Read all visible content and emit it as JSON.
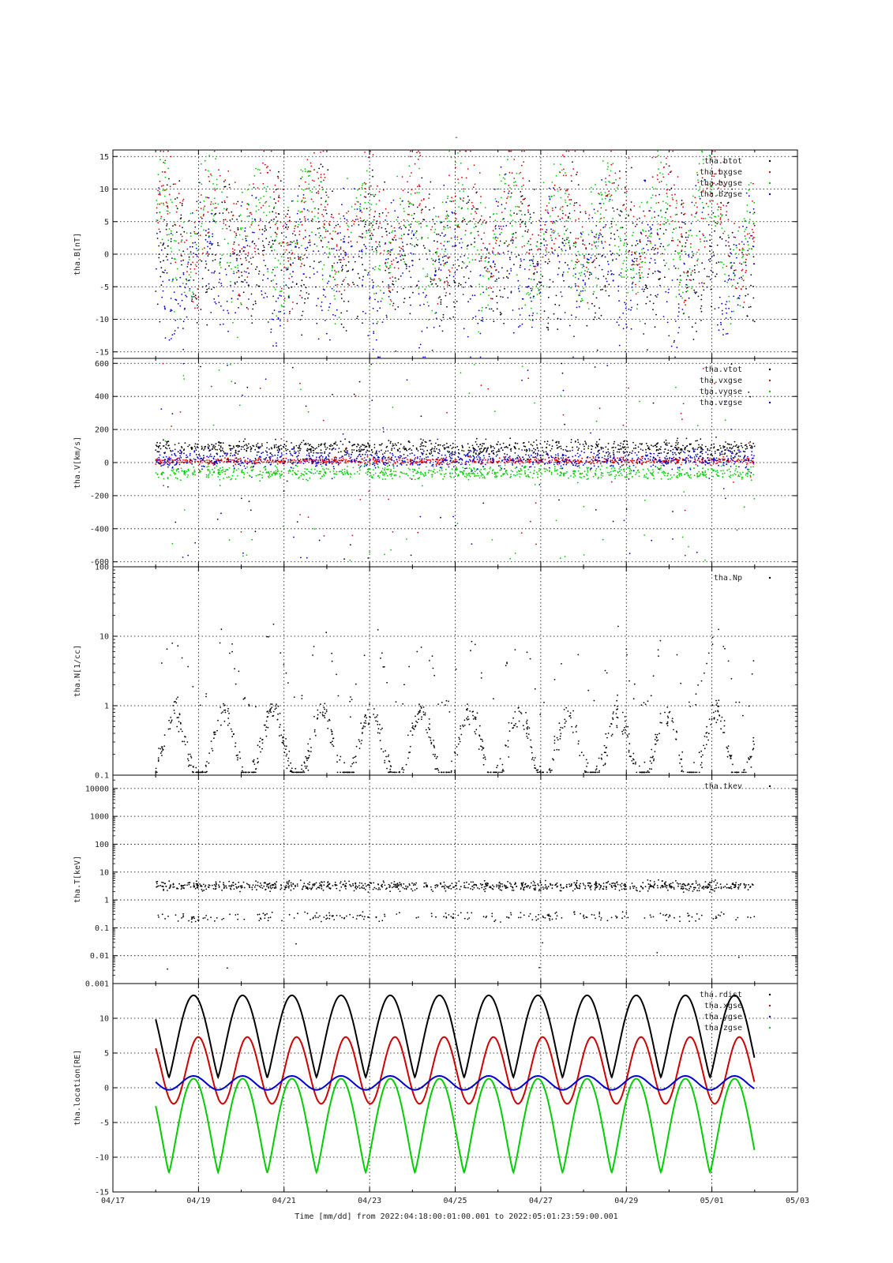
{
  "figure": {
    "title": "-",
    "time_axis": {
      "start": "2022-04-17",
      "end": "2022-05-03",
      "tick_labels": [
        {
          "date": "2022-04-17",
          "label": "04/17"
        },
        {
          "date": "2022-04-19",
          "label": "04/19"
        },
        {
          "date": "2022-04-21",
          "label": "04/21"
        },
        {
          "date": "2022-04-23",
          "label": "04/23"
        },
        {
          "date": "2022-04-25",
          "label": "04/25"
        },
        {
          "date": "2022-04-27",
          "label": "04/27"
        },
        {
          "date": "2022-04-29",
          "label": "04/29"
        },
        {
          "date": "2022-05-01",
          "label": "05/01"
        },
        {
          "date": "2022-05-03",
          "label": "05/03"
        }
      ],
      "label": "Time [mm/dd]  from 2022:04:18:00:01:00.001  to  2022:05:01:23:59:00.001"
    }
  },
  "chart_data": [
    {
      "type": "scatter",
      "ylabel": "tha.B[nT]",
      "scale": "linear",
      "ylim": [
        -16,
        16
      ],
      "yticks": [
        -15,
        -10,
        -5,
        0,
        5,
        10,
        15
      ],
      "legend_position": "top-right",
      "data_start": "2022-04-18",
      "data_end": "2022-05-01 23:59",
      "series": [
        {
          "name": "tha.btot",
          "color": "#000000"
        },
        {
          "name": "tha.bxgse",
          "color": "#dd0000"
        },
        {
          "name": "tha.bygse",
          "color": "#00cc00"
        },
        {
          "name": "tha.bzgse",
          "color": "#0000cc"
        }
      ]
    },
    {
      "type": "scatter",
      "ylabel": "tha.V[km/s]",
      "scale": "linear",
      "ylim": [
        -630,
        630
      ],
      "yticks": [
        -600,
        -400,
        -200,
        0,
        200,
        400,
        600
      ],
      "legend_position": "top-right",
      "data_start": "2022-04-18",
      "data_end": "2022-05-01 23:59",
      "series": [
        {
          "name": "tha.vtot",
          "color": "#000000"
        },
        {
          "name": "tha.vxgse",
          "color": "#dd0000"
        },
        {
          "name": "tha.vygse",
          "color": "#00cc00"
        },
        {
          "name": "tha.vzgse",
          "color": "#0000cc"
        }
      ]
    },
    {
      "type": "scatter",
      "ylabel": "tha.N[1/cc]",
      "scale": "log",
      "ylim": [
        0.1,
        100
      ],
      "yticks": [
        0.1,
        1,
        10,
        100
      ],
      "ytick_labels": [
        "0.1",
        "1",
        "10",
        "100"
      ],
      "legend_position": "top-right",
      "data_start": "2022-04-18",
      "data_end": "2022-05-01 23:59",
      "series": [
        {
          "name": "tha.Np",
          "color": "#000000"
        }
      ]
    },
    {
      "type": "scatter",
      "ylabel": "tha.T[keV]",
      "scale": "log",
      "ylim": [
        0.001,
        30000
      ],
      "yticks": [
        0.001,
        0.01,
        0.1,
        1,
        10,
        100,
        1000,
        10000
      ],
      "ytick_labels": [
        "0.001",
        "0.01",
        "0.1",
        "1",
        "10",
        "100",
        "1000",
        "10000"
      ],
      "legend_position": "top-right",
      "data_start": "2022-04-18",
      "data_end": "2022-05-01 23:59",
      "series": [
        {
          "name": "tha.tkev",
          "color": "#000000"
        }
      ]
    },
    {
      "type": "line",
      "ylabel": "tha.location[RE]",
      "scale": "linear",
      "ylim": [
        -15,
        15
      ],
      "yticks": [
        -15,
        -10,
        -5,
        0,
        5,
        10
      ],
      "legend_position": "top-right",
      "data_start": "2022-04-18",
      "data_end": "2022-05-01 23:59",
      "orbit_period_days": 1.15,
      "orbit_apogee_times": [
        "2022-04-18 21:15",
        "2022-04-20 00:45",
        "2022-04-21 04:25",
        "2022-04-22 08:00",
        "2022-04-23 11:35",
        "2022-04-24 15:10",
        "2022-04-25 18:50",
        "2022-04-26 22:25",
        "2022-04-28 02:00",
        "2022-04-29 05:35",
        "2022-04-30 09:10",
        "2022-05-01 12:45"
      ],
      "series": [
        {
          "name": "tha.rdist",
          "color": "#000000",
          "peak": 13.3,
          "trough": 1.5
        },
        {
          "name": "tha.xgse",
          "color": "#cc0000",
          "peak": 7.3,
          "trough": -2.3
        },
        {
          "name": "tha.ygse",
          "color": "#0000cc",
          "peak": 1.7,
          "trough": -0.3
        },
        {
          "name": "tha.zgse",
          "color": "#00cc00",
          "peak": 1.3,
          "trough": -12.2
        }
      ]
    }
  ]
}
